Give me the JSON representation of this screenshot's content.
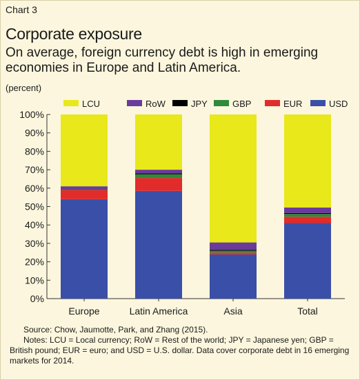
{
  "header": {
    "chart_number": "Chart 3",
    "title": "Corporate exposure",
    "subtitle": "On average, foreign currency debt is high in emerging economies in Europe and Latin America.",
    "unit": "(percent)"
  },
  "footer": {
    "source": "Source: Chow, Jaumotte, Park, and Zhang (2015).",
    "notes": "Notes: LCU = Local currency; RoW = Rest of the world; JPY = Japanese yen; GBP = British pound; EUR = euro; and USD = U.S. dollar. Data cover corporate debt in 16 emerging markets for 2014."
  },
  "chart_data": {
    "type": "bar",
    "stacked": true,
    "categories": [
      "Europe",
      "Latin America",
      "Asia",
      "Total"
    ],
    "ylim": [
      0,
      100
    ],
    "yticks": [
      "0%",
      "10%",
      "20%",
      "30%",
      "40%",
      "50%",
      "60%",
      "70%",
      "80%",
      "90%",
      "100%"
    ],
    "grid": false,
    "legend_position": "top",
    "series": [
      {
        "name": "USD",
        "color": "#3a4fa8",
        "values": [
          54,
          58.5,
          24,
          41
        ]
      },
      {
        "name": "EUR",
        "color": "#e22b2b",
        "values": [
          5,
          7,
          1,
          3.5
        ]
      },
      {
        "name": "GBP",
        "color": "#2f8a3a",
        "values": [
          0.3,
          2,
          1,
          1.5
        ]
      },
      {
        "name": "JPY",
        "color": "#000000",
        "values": [
          0.2,
          0.5,
          0.5,
          0.5
        ]
      },
      {
        "name": "RoW",
        "color": "#6a3a9c",
        "values": [
          1.5,
          2,
          4,
          3
        ]
      },
      {
        "name": "LCU",
        "color": "#e8e81a",
        "values": [
          39,
          30,
          69.5,
          50.5
        ]
      }
    ],
    "legend_order": [
      "LCU",
      "RoW",
      "JPY",
      "GBP",
      "EUR",
      "USD"
    ]
  }
}
